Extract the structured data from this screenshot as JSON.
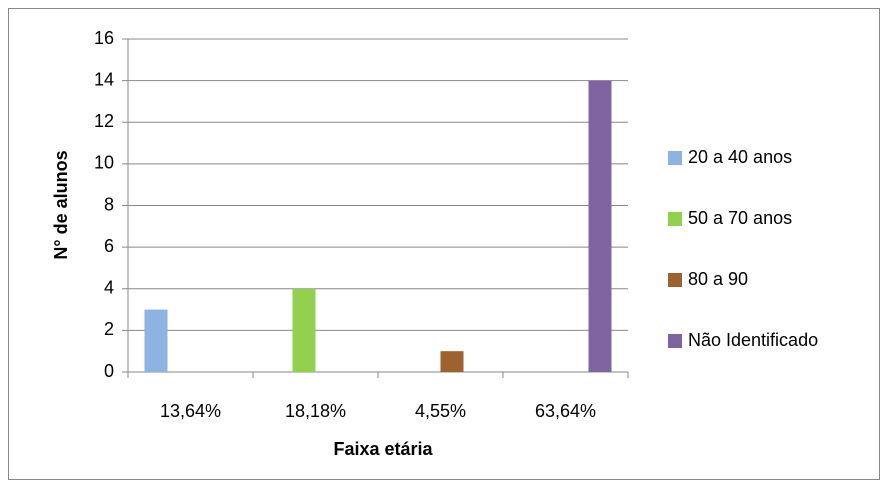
{
  "chart_data": {
    "type": "bar",
    "categories": [
      "13,64%",
      "18,18%",
      "4,55%",
      "63,64%"
    ],
    "series": [
      {
        "name": "20 a 40 anos",
        "color": "#8db3e2",
        "values": [
          3,
          null,
          null,
          null
        ]
      },
      {
        "name": "50 a 70 anos",
        "color": "#92d050",
        "values": [
          null,
          4,
          null,
          null
        ]
      },
      {
        "name": "80 a 90",
        "color": "#9c6331",
        "values": [
          null,
          null,
          1,
          null
        ]
      },
      {
        "name": "Não Identificado",
        "color": "#8064a2",
        "values": [
          null,
          null,
          null,
          14
        ]
      }
    ],
    "xlabel": "Faixa etária",
    "ylabel": "N° de alunos",
    "ylim": [
      0,
      16
    ],
    "yticks": [
      0,
      2,
      4,
      6,
      8,
      10,
      12,
      14,
      16
    ],
    "grid": true,
    "legend": "right"
  }
}
